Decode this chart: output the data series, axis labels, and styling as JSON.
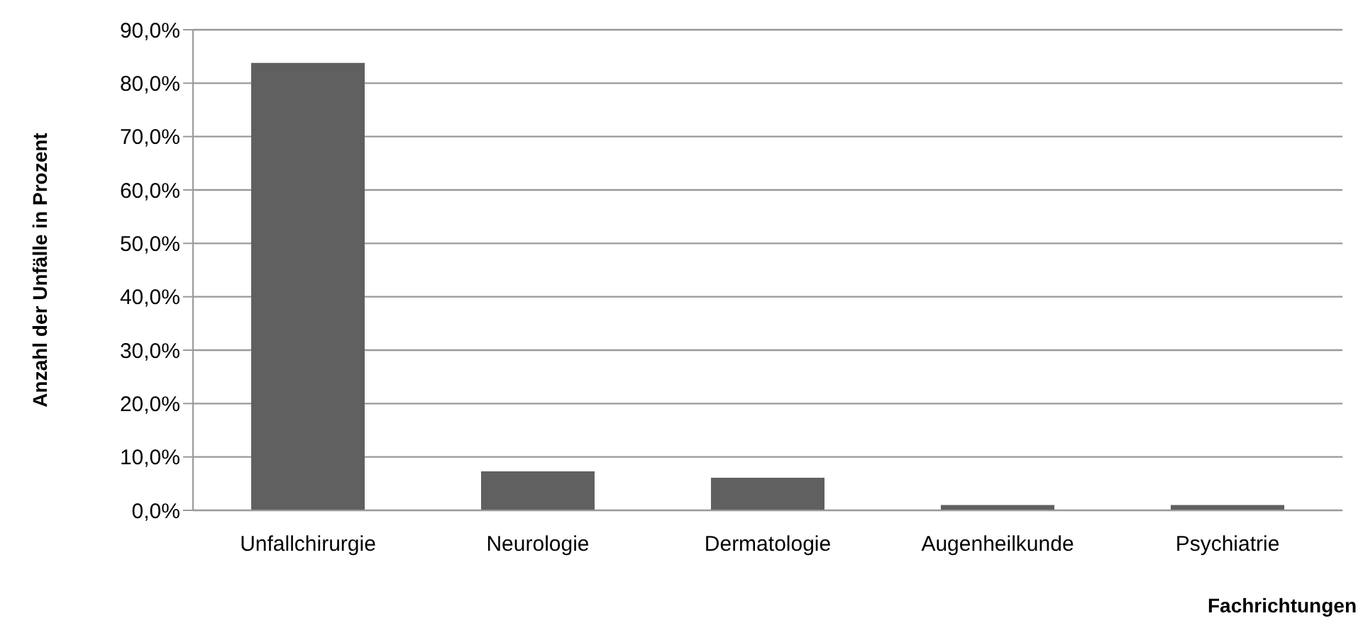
{
  "chart_data": {
    "type": "bar",
    "xlabel": "Fachrichtungen",
    "ylabel": "Anzahl der Unfälle in Prozent",
    "categories": [
      "Unfallchirurgie",
      "Neurologie",
      "Dermatologie",
      "Augenheilkunde",
      "Psychiatrie"
    ],
    "values": [
      83.8,
      7.3,
      6.1,
      1.0,
      1.0
    ],
    "color": "#606060",
    "ylim": [
      0,
      90
    ],
    "yticks": [
      {
        "value": 0,
        "label": "0,0%"
      },
      {
        "value": 10,
        "label": "10,0%"
      },
      {
        "value": 20,
        "label": "20,0%"
      },
      {
        "value": 30,
        "label": "30,0%"
      },
      {
        "value": 40,
        "label": "40,0%"
      },
      {
        "value": 50,
        "label": "50,0%"
      },
      {
        "value": 60,
        "label": "60,0%"
      },
      {
        "value": 70,
        "label": "70,0%"
      },
      {
        "value": 80,
        "label": "80,0%"
      },
      {
        "value": 90,
        "label": "90,0%"
      }
    ],
    "grid": "y"
  }
}
